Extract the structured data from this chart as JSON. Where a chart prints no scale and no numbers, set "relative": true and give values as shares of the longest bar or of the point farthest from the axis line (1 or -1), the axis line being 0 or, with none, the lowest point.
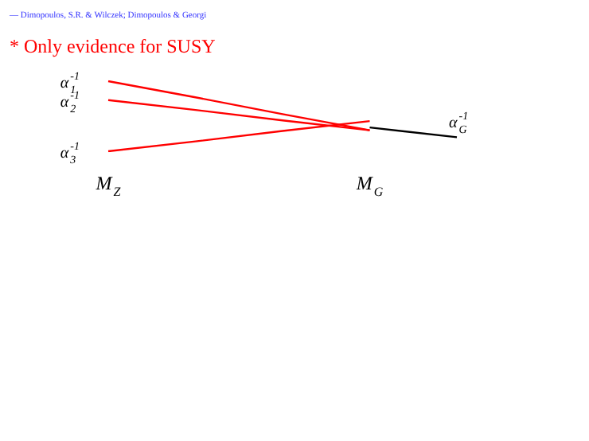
{
  "chart_data": {
    "type": "line",
    "title": "* Only evidence for SUSY",
    "annotations": [
      "— Dimopoulos, S.R. & Wilczek; Dimopoulos & Georgi"
    ],
    "relative": true,
    "categories": [
      "M$_{Z}$",
      null,
      null,
      "M$_{G}$",
      null
    ],
    "legend": false,
    "marker": "none",
    "line_style": "solid",
    "series": [
      {
        "name": "α$_{1}$$^{-1}$",
        "color": "#ff0000",
        "values": [
          1,
          0.77,
          0.53,
          0.3,
          null
        ]
      },
      {
        "name": "α$_{2}$$^{-1}$",
        "color": "#ff0000",
        "values": [
          0.73,
          0.59,
          0.44,
          0.3,
          null
        ]
      },
      {
        "name": "α$_{3}$$^{-1}$",
        "color": "#ff0000",
        "values": [
          0,
          0.14,
          0.29,
          0.43,
          null
        ]
      },
      {
        "name": "α$_{G}$$^{-1}$",
        "color": "#000000",
        "values": [
          null,
          null,
          null,
          0.34,
          0.2
        ]
      }
    ]
  }
}
